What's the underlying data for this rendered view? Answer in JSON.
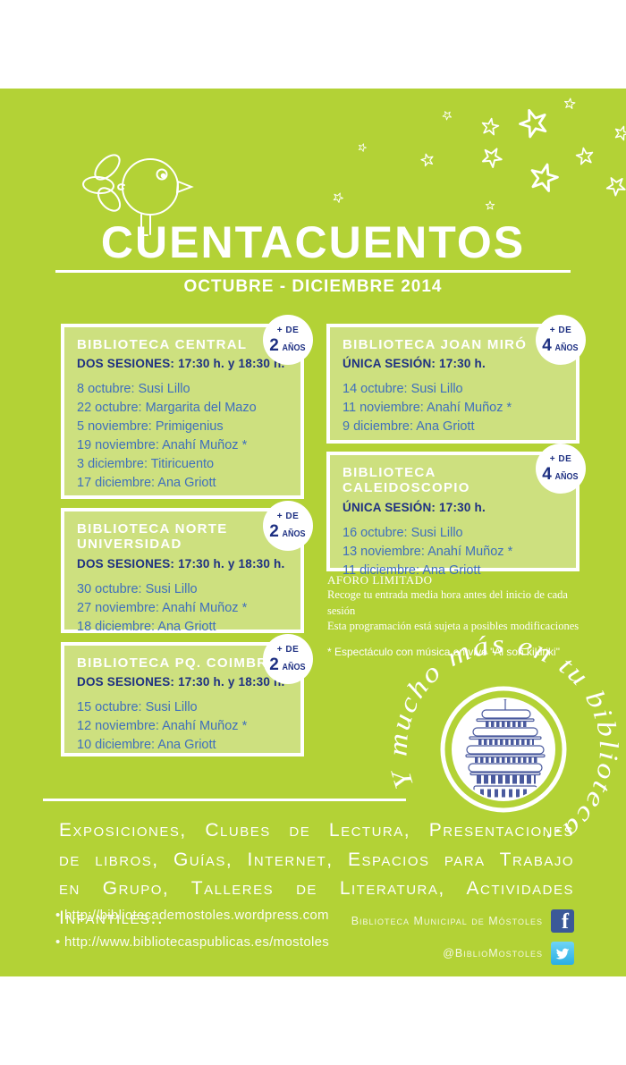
{
  "poster": {
    "title": "CUENTACUENTOS",
    "subtitle": "OCTUBRE - DICIEMBRE 2014",
    "colors": {
      "background_green": "#b3d236",
      "box_fill_green": "#cde07f",
      "heading_navy": "#1e3082",
      "event_blue": "#3f6fbd",
      "facebook_blue": "#3b5998",
      "twitter_blue": "#29aee3"
    },
    "libraries": [
      {
        "title": "BIBLIOTECA CENTRAL",
        "session": "DOS SESIONES: 17:30 h. y 18:30 h.",
        "age_plus": "+ DE",
        "age_number": "2",
        "age_unit": "AÑOS",
        "events": [
          "8 octubre: Susi Lillo",
          "22 octubre: Margarita del Mazo",
          "5 noviembre: Primigenius",
          "19 noviembre: Anahí Muñoz *",
          "3 diciembre: Titiricuento",
          "17 diciembre: Ana Griott"
        ]
      },
      {
        "title": "BIBLIOTECA JOAN MIRÓ",
        "session": "ÚNICA SESIÓN: 17:30 h.",
        "age_plus": "+ DE",
        "age_number": "4",
        "age_unit": "AÑOS",
        "events": [
          "14 octubre: Susi Lillo",
          "11 noviembre: Anahí Muñoz *",
          "9 diciembre: Ana Griott"
        ]
      },
      {
        "title": "BIBLIOTECA CALEIDOSCOPIO",
        "session": "ÚNICA SESIÓN: 17:30 h.",
        "age_plus": "+ DE",
        "age_number": "4",
        "age_unit": "AÑOS",
        "events": [
          "16 octubre: Susi Lillo",
          "13 noviembre: Anahí Muñoz *",
          "11 diciembre: Ana Griott"
        ]
      },
      {
        "title": "BIBLIOTECA NORTE UNIVERSIDAD",
        "session": "DOS SESIONES: 17:30 h. y 18:30 h.",
        "age_plus": "+ DE",
        "age_number": "2",
        "age_unit": "AÑOS",
        "events": [
          "30 octubre: Susi Lillo",
          "27 noviembre: Anahí Muñoz *",
          "18 diciembre: Ana Griott"
        ]
      },
      {
        "title": "BIBLIOTECA PQ. COIMBRA",
        "session": "DOS SESIONES: 17:30 h. y 18:30 h.",
        "age_plus": "+ DE",
        "age_number": "2",
        "age_unit": "AÑOS",
        "events": [
          "15 octubre: Susi Lillo",
          "12 noviembre: Anahí Muñoz *",
          "10 diciembre: Ana Griott"
        ]
      }
    ],
    "notes": {
      "aforo_title": "AFORO LIMITADO",
      "aforo_line1": "Recoge tu entrada media hora antes del inicio de cada sesión",
      "aforo_line2": "Esta programación está sujeta a posibles modificaciones",
      "footnote": "* Espectáculo con música en vivo \"Al son kikiriki\""
    },
    "seal_text": "Y mucho más en tu biblioteca..",
    "activities": "Exposiciones, Clubes de Lectura, Presentaciones de libros, Guías, Internet, Espacios para Trabajo en Grupo, Talleres de Literatura, Actividades Infantiles..",
    "links": [
      {
        "url": "http://bibliotecademostoles.wordpress.com"
      },
      {
        "url": "http://www.bibliotecaspublicas.es/mostoles"
      }
    ],
    "social": [
      {
        "label": "Biblioteca Municipal de Móstoles",
        "icon": "facebook-icon"
      },
      {
        "label": "@BiblioMostoles",
        "icon": "twitter-icon"
      }
    ]
  }
}
